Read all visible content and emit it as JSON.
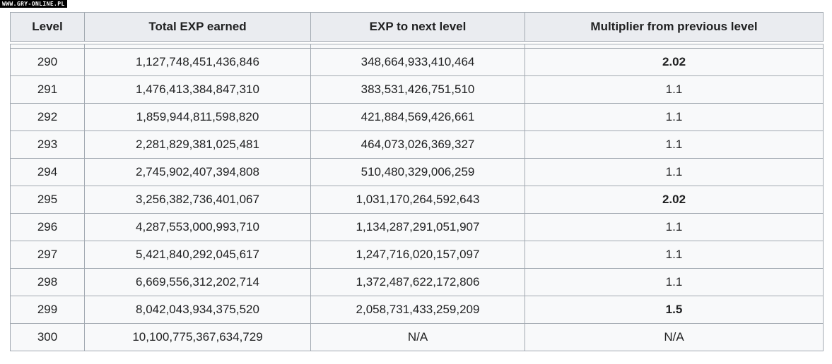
{
  "watermark": "WWW.GRY-ONLINE.PL",
  "table": {
    "columns": [
      "Level",
      "Total EXP earned",
      "EXP to next level",
      "Multiplier from previous level"
    ],
    "rows": [
      {
        "level": "290",
        "total_exp": "1,127,748,451,436,846",
        "exp_to_next": "348,664,933,410,464",
        "multiplier": "2.02",
        "multiplier_bold": true
      },
      {
        "level": "291",
        "total_exp": "1,476,413,384,847,310",
        "exp_to_next": "383,531,426,751,510",
        "multiplier": "1.1",
        "multiplier_bold": false
      },
      {
        "level": "292",
        "total_exp": "1,859,944,811,598,820",
        "exp_to_next": "421,884,569,426,661",
        "multiplier": "1.1",
        "multiplier_bold": false
      },
      {
        "level": "293",
        "total_exp": "2,281,829,381,025,481",
        "exp_to_next": "464,073,026,369,327",
        "multiplier": "1.1",
        "multiplier_bold": false
      },
      {
        "level": "294",
        "total_exp": "2,745,902,407,394,808",
        "exp_to_next": "510,480,329,006,259",
        "multiplier": "1.1",
        "multiplier_bold": false
      },
      {
        "level": "295",
        "total_exp": "3,256,382,736,401,067",
        "exp_to_next": "1,031,170,264,592,643",
        "multiplier": "2.02",
        "multiplier_bold": true
      },
      {
        "level": "296",
        "total_exp": "4,287,553,000,993,710",
        "exp_to_next": "1,134,287,291,051,907",
        "multiplier": "1.1",
        "multiplier_bold": false
      },
      {
        "level": "297",
        "total_exp": "5,421,840,292,045,617",
        "exp_to_next": "1,247,716,020,157,097",
        "multiplier": "1.1",
        "multiplier_bold": false
      },
      {
        "level": "298",
        "total_exp": "6,669,556,312,202,714",
        "exp_to_next": "1,372,487,622,172,806",
        "multiplier": "1.1",
        "multiplier_bold": false
      },
      {
        "level": "299",
        "total_exp": "8,042,043,934,375,520",
        "exp_to_next": "2,058,731,433,259,209",
        "multiplier": "1.5",
        "multiplier_bold": true
      },
      {
        "level": "300",
        "total_exp": "10,100,775,367,634,729",
        "exp_to_next": "N/A",
        "multiplier": "N/A",
        "multiplier_bold": false
      }
    ]
  }
}
